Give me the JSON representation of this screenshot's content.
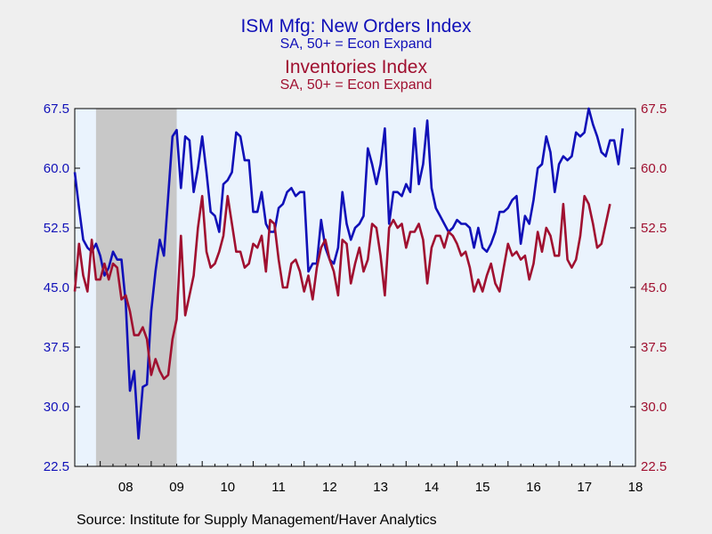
{
  "header": {
    "title1": "ISM Mfg: New Orders Index",
    "subtitle1": "SA, 50+ = Econ Expand",
    "title2": "Inventories Index",
    "subtitle2": "SA, 50+ = Econ Expand"
  },
  "source": "Source:  Institute for Supply Management/Haver Analytics",
  "colors": {
    "new_orders": "#1010b8",
    "inventories": "#a01030",
    "plot_bg": "#eaf3fd",
    "recession": "#c8c8c8"
  },
  "chart_data": {
    "type": "line",
    "x_start": "2007-07",
    "frequency": "monthly",
    "xtick_labels": [
      "08",
      "09",
      "10",
      "11",
      "12",
      "13",
      "14",
      "15",
      "16",
      "17",
      "18"
    ],
    "ylim": [
      22.5,
      67.5
    ],
    "yticks": [
      22.5,
      30.0,
      37.5,
      45.0,
      52.5,
      60.0,
      67.5
    ],
    "ytick_labels": [
      "22.5",
      "30.0",
      "37.5",
      "45.0",
      "52.5",
      "60.0",
      "67.5"
    ],
    "recession_shading": {
      "start": "2007-12",
      "end": "2009-06"
    },
    "grid": false,
    "series": [
      {
        "name": "ISM Mfg: New Orders Index",
        "axis": "left",
        "values": [
          59.5,
          55.0,
          51.0,
          50.0,
          49.5,
          50.5,
          49.0,
          46.5,
          47.5,
          49.5,
          48.5,
          48.5,
          43.0,
          32.0,
          34.5,
          26.0,
          32.5,
          32.8,
          42.0,
          47.0,
          51.0,
          49.0,
          56.5,
          64.0,
          64.8,
          57.5,
          64.0,
          63.5,
          57.0,
          60.0,
          64.0,
          59.5,
          54.5,
          54.0,
          52.0,
          58.0,
          58.5,
          59.5,
          64.5,
          64.0,
          61.0,
          61.0,
          54.5,
          54.5,
          57.0,
          53.0,
          52.0,
          52.0,
          55.0,
          55.5,
          57.0,
          57.5,
          56.5,
          57.0,
          57.0,
          47.0,
          48.0,
          48.0,
          53.5,
          50.0,
          48.5,
          48.0,
          50.0,
          57.0,
          53.0,
          51.0,
          52.5,
          53.0,
          54.0,
          62.5,
          60.5,
          58.0,
          60.5,
          65.0,
          53.0,
          57.0,
          57.0,
          56.5,
          58.0,
          57.0,
          65.0,
          58.0,
          60.5,
          66.0,
          57.5,
          55.0,
          54.0,
          53.0,
          52.0,
          52.5,
          53.5,
          53.0,
          53.0,
          52.5,
          50.0,
          52.5,
          50.0,
          49.5,
          50.5,
          52.0,
          54.5,
          54.5,
          55.0,
          56.0,
          56.5,
          50.5,
          54.0,
          53.0,
          56.0,
          60.0,
          60.5,
          64.0,
          62.0,
          57.0,
          60.5,
          61.5,
          61.0,
          61.5,
          64.5,
          64.0,
          64.5,
          67.5,
          65.5,
          64.0,
          62.0,
          61.5,
          63.5,
          63.5,
          60.5,
          65.0
        ]
      },
      {
        "name": "Inventories Index",
        "axis": "right",
        "values": [
          44.5,
          50.5,
          46.5,
          44.5,
          51.0,
          46.0,
          46.0,
          48.0,
          46.0,
          48.0,
          47.5,
          43.5,
          44.0,
          42.0,
          39.0,
          39.0,
          40.0,
          38.5,
          34.0,
          36.0,
          34.5,
          33.5,
          34.0,
          38.5,
          41.0,
          51.5,
          41.5,
          44.0,
          46.5,
          52.5,
          56.5,
          49.5,
          47.5,
          48.0,
          49.5,
          51.5,
          56.5,
          53.0,
          49.5,
          49.5,
          47.5,
          48.0,
          50.5,
          50.0,
          51.5,
          47.0,
          53.5,
          53.0,
          48.5,
          45.0,
          45.0,
          48.0,
          48.5,
          47.0,
          44.5,
          46.5,
          43.5,
          47.5,
          50.0,
          51.0,
          48.5,
          47.0,
          44.0,
          51.0,
          50.5,
          45.5,
          48.0,
          50.0,
          47.0,
          48.5,
          53.0,
          52.5,
          49.0,
          44.0,
          52.5,
          53.5,
          52.5,
          53.0,
          50.0,
          52.0,
          52.0,
          53.0,
          51.0,
          45.5,
          50.0,
          51.5,
          51.5,
          50.0,
          52.0,
          51.5,
          50.5,
          49.0,
          49.5,
          47.5,
          44.5,
          46.0,
          44.5,
          46.5,
          48.0,
          45.5,
          44.5,
          47.5,
          50.5,
          49.0,
          49.5,
          48.5,
          49.0,
          46.0,
          48.0,
          52.0,
          49.5,
          52.5,
          51.5,
          49.0,
          49.0,
          55.5,
          48.5,
          47.5,
          48.5,
          51.5,
          56.5,
          55.5,
          53.0,
          50.0,
          50.5,
          53.0,
          55.5
        ]
      }
    ]
  }
}
